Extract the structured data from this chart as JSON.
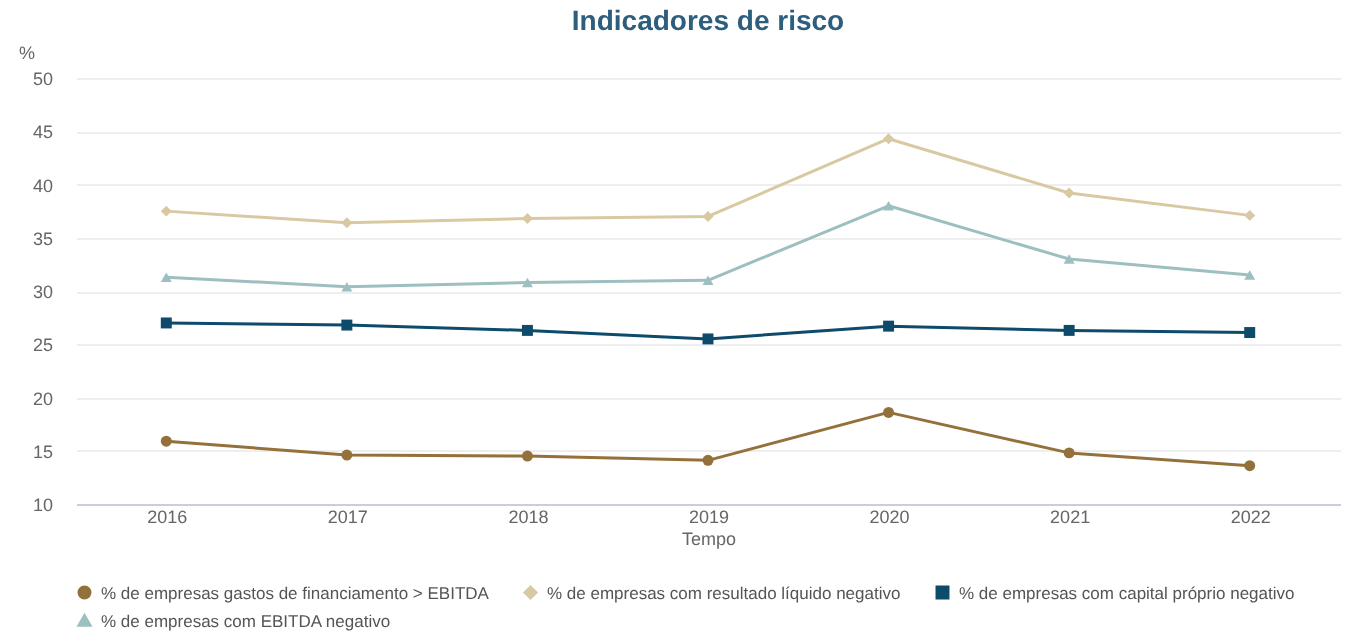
{
  "chart_data": {
    "type": "line",
    "title": "Indicadores de risco",
    "xlabel": "Tempo",
    "ylabel": "%",
    "categories": [
      "2016",
      "2017",
      "2018",
      "2019",
      "2020",
      "2021",
      "2022"
    ],
    "series": [
      {
        "name": "% de empresas gastos de financiamento > EBITDA",
        "color": "#94703a",
        "marker": "circle",
        "values": [
          15.9,
          14.6,
          14.5,
          14.1,
          18.6,
          14.8,
          13.6
        ]
      },
      {
        "name": "% de empresas com resultado líquido negativo",
        "color": "#d9c9a3",
        "marker": "diamond",
        "values": [
          37.5,
          36.4,
          36.8,
          37.0,
          44.3,
          39.2,
          37.1
        ]
      },
      {
        "name": "% de empresas com capital próprio negativo",
        "color": "#0d4a6b",
        "marker": "square",
        "values": [
          27.0,
          26.8,
          26.3,
          25.5,
          26.7,
          26.3,
          26.1
        ]
      },
      {
        "name": "% de empresas com EBITDA negativo",
        "color": "#9dbfc0",
        "marker": "triangle",
        "values": [
          31.3,
          30.4,
          30.8,
          31.0,
          38.0,
          33.0,
          31.5
        ]
      }
    ],
    "ylim": [
      10,
      50
    ],
    "yticks": [
      10,
      15,
      20,
      25,
      30,
      35,
      40,
      45,
      50
    ],
    "grid": "y",
    "legend": "bottom"
  }
}
